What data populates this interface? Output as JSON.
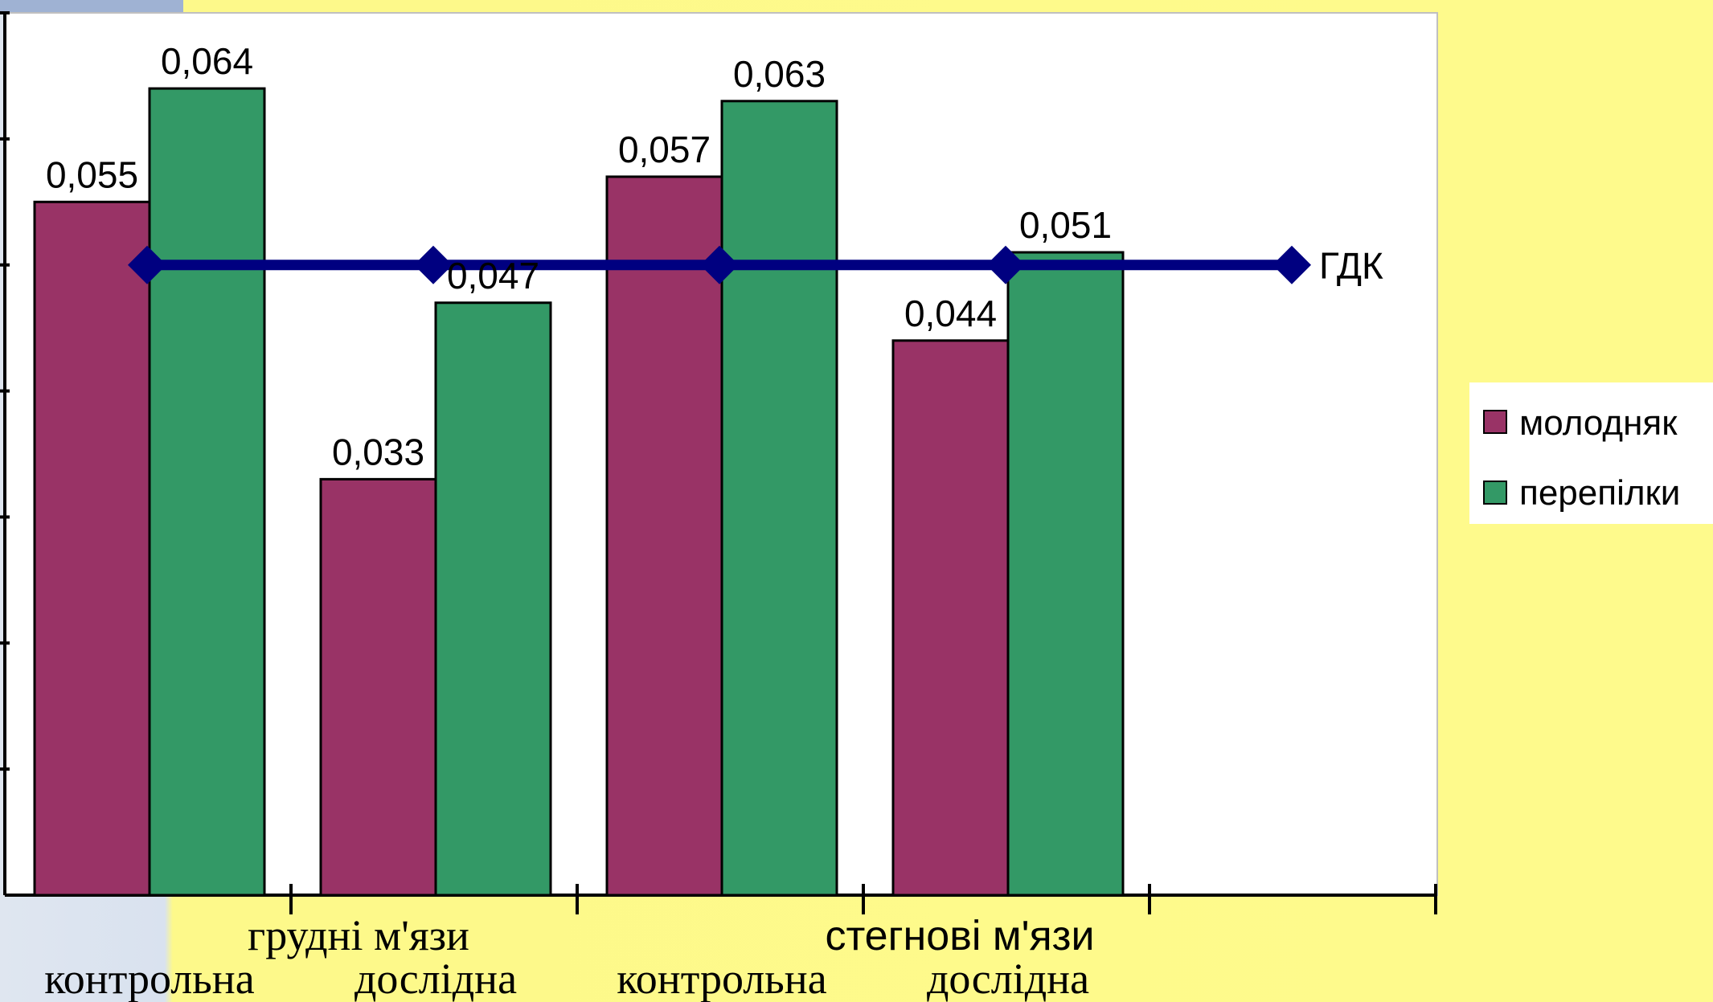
{
  "chart_data": {
    "type": "bar",
    "categories": [
      "контрольна",
      "дослідна",
      "контрольна",
      "дослідна"
    ],
    "groups": [
      {
        "label": "грудні м'язи",
        "categories": [
          "контрольна",
          "дослідна"
        ]
      },
      {
        "label": "стегнові м'язи",
        "categories": [
          "контрольна",
          "дослідна"
        ]
      }
    ],
    "series": [
      {
        "name": "молодняк",
        "color": "#993366",
        "values": [
          0.055,
          0.033,
          0.057,
          0.044
        ],
        "labels": [
          "0,055",
          "0,033",
          "0,057",
          "0,044"
        ]
      },
      {
        "name": "перепілки",
        "color": "#339966",
        "values": [
          0.064,
          0.047,
          0.063,
          0.051
        ],
        "labels": [
          "0,064",
          "0,047",
          "0,063",
          "0,051"
        ]
      }
    ],
    "line": {
      "name": "ГДК",
      "value": 0.05,
      "color": "#000080"
    },
    "ylim": [
      0,
      0.07
    ],
    "legend_position": "right",
    "grid": false
  }
}
